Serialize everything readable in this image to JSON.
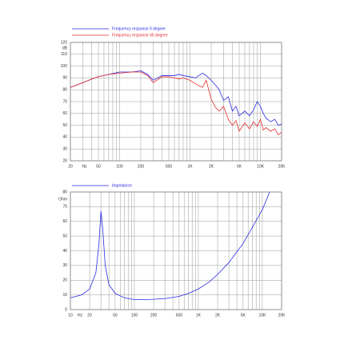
{
  "chart_data": [
    {
      "type": "line",
      "log_x": true,
      "grid": true,
      "legend": "top-left",
      "y_unit": "dB",
      "x_unit": "Hz",
      "x": [
        20,
        30,
        40,
        50,
        70,
        100,
        150,
        200,
        250,
        300,
        400,
        500,
        600,
        700,
        800,
        1000,
        1200,
        1500,
        1700,
        2000,
        2300,
        2600,
        3000,
        3500,
        4000,
        4500,
        5000,
        6000,
        7000,
        8000,
        9000,
        10000,
        11000,
        12000,
        14000,
        16000,
        18000,
        20000
      ],
      "series": [
        {
          "name": "Frequency response 0 degree",
          "color": "#2a2ae6",
          "values": [
            82,
            86,
            89,
            91,
            93,
            95,
            95,
            96,
            93,
            88,
            92,
            92,
            92,
            93,
            92,
            91,
            90,
            94,
            92,
            88,
            84,
            80,
            71,
            74,
            62,
            66,
            58,
            62,
            58,
            63,
            70,
            66,
            60,
            56,
            53,
            55,
            50,
            51
          ]
        },
        {
          "name": "Frequency response 45 degree",
          "color": "#e62a2a",
          "values": [
            82,
            86,
            89,
            91,
            93,
            94,
            95,
            95,
            92,
            86,
            91,
            91,
            90,
            89,
            90,
            88,
            85,
            82,
            88,
            72,
            65,
            62,
            66,
            55,
            50,
            54,
            45,
            52,
            47,
            53,
            49,
            55,
            46,
            48,
            45,
            47,
            42,
            44
          ]
        }
      ],
      "xlim": [
        20,
        20000
      ],
      "xticks": [
        20,
        50,
        100,
        200,
        500,
        {
          "value": 1000,
          "label": "1K"
        },
        {
          "value": 2000,
          "label": "2K"
        },
        {
          "value": 5000,
          "label": "5K"
        },
        {
          "value": 10000,
          "label": "10K"
        },
        {
          "value": 20000,
          "label": "20K"
        }
      ],
      "minor_xticks": [
        30,
        40,
        60,
        70,
        80,
        90,
        300,
        400,
        600,
        700,
        800,
        900,
        3000,
        4000,
        6000,
        7000,
        8000,
        9000
      ],
      "ylim": [
        20,
        120
      ],
      "yticks": [
        20,
        30,
        40,
        50,
        60,
        70,
        80,
        90,
        100,
        110,
        120
      ]
    },
    {
      "type": "line",
      "log_x": true,
      "grid": true,
      "legend": "top-left",
      "y_unit": "Ohm",
      "x_unit": "Hz",
      "x": [
        10,
        15,
        20,
        25,
        28,
        30,
        32,
        35,
        40,
        50,
        70,
        100,
        150,
        200,
        300,
        500,
        700,
        1000,
        1500,
        2000,
        3000,
        5000,
        7000,
        10000,
        13000
      ],
      "series": [
        {
          "name": "Impedance",
          "color": "#2a2ae6",
          "values": [
            8,
            10,
            14,
            25,
            45,
            67,
            55,
            30,
            17,
            11,
            8,
            6.8,
            6.8,
            7,
            7.5,
            9,
            11,
            14,
            19,
            24,
            32,
            45,
            56,
            68,
            80
          ]
        }
      ],
      "xlim": [
        10,
        20000
      ],
      "xticks": [
        10,
        20,
        50,
        100,
        200,
        500,
        {
          "value": 1000,
          "label": "1K"
        },
        {
          "value": 2000,
          "label": "2K"
        },
        {
          "value": 5000,
          "label": "5K"
        },
        {
          "value": 10000,
          "label": "10K"
        },
        {
          "value": 20000,
          "label": "20K"
        }
      ],
      "minor_xticks": [
        30,
        40,
        60,
        70,
        80,
        90,
        300,
        400,
        600,
        700,
        800,
        900,
        3000,
        4000,
        6000,
        7000,
        8000,
        9000
      ],
      "ylim": [
        0,
        80
      ],
      "yticks": [
        0,
        10,
        20,
        30,
        40,
        50,
        60,
        70,
        80
      ]
    }
  ]
}
